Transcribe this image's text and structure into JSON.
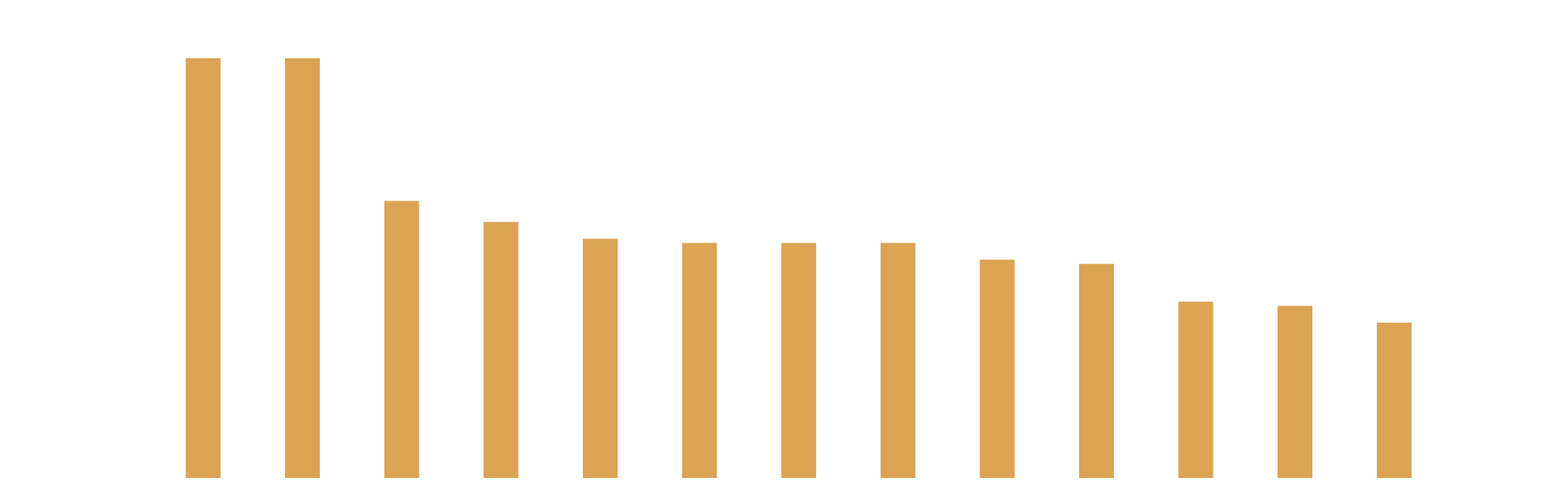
{
  "chart_data": {
    "type": "bar",
    "categories": [
      null,
      null,
      null,
      null,
      null,
      null,
      null,
      null,
      null,
      null,
      null,
      null,
      null
    ],
    "values": [
      100,
      100,
      66,
      61,
      57,
      56,
      56,
      56,
      52,
      51,
      42,
      41,
      37
    ],
    "color": "#dba352",
    "ylim": [
      0,
      100
    ],
    "grid": false
  }
}
